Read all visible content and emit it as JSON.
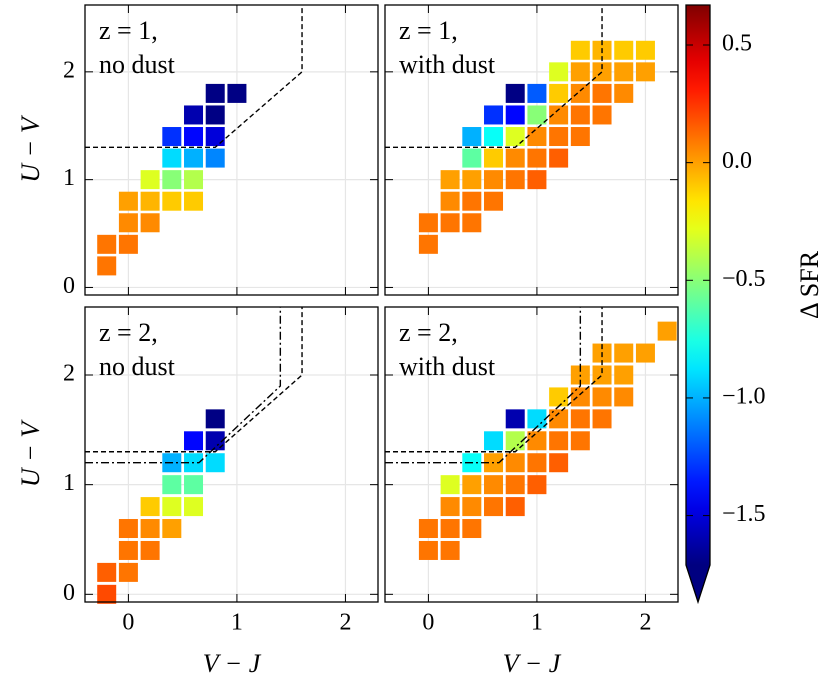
{
  "chart_data": [
    {
      "type": "heatmap",
      "label": [
        "z = 1,",
        "no dust"
      ],
      "ylabel": "U − V",
      "x": [
        -0.2,
        -0.2,
        0,
        0,
        0,
        0.2,
        0.2,
        0.2,
        0.4,
        0.4,
        0.4,
        0.4,
        0.6,
        0.6,
        0.6,
        0.6,
        0.6,
        0.8,
        0.8,
        0.8,
        0.8,
        1.0
      ],
      "y": [
        0.2,
        0.4,
        0.4,
        0.6,
        0.8,
        0.6,
        0.8,
        1.0,
        0.8,
        1.0,
        1.2,
        1.4,
        0.8,
        1.0,
        1.2,
        1.4,
        1.6,
        1.2,
        1.4,
        1.6,
        1.8,
        1.8
      ],
      "values": [
        0.1,
        0.1,
        0.1,
        0.05,
        0.0,
        0.05,
        -0.05,
        -0.3,
        -0.1,
        -0.5,
        -0.9,
        -1.3,
        -0.1,
        -0.4,
        -1.0,
        -1.4,
        -1.6,
        -1.1,
        -1.5,
        -1.7,
        -1.7,
        -1.7
      ],
      "boundaries": [
        {
          "style": "dashed",
          "x": [
            -0.4,
            0.8,
            1.6,
            1.6
          ],
          "y": [
            1.3,
            1.3,
            2.0,
            2.62
          ]
        }
      ],
      "xlim": [
        -0.4,
        2.3
      ],
      "ylim": [
        -0.07,
        2.62
      ],
      "xticks": [
        0,
        1,
        2
      ],
      "yticks": [
        0,
        1,
        2
      ],
      "grid": true
    },
    {
      "type": "heatmap",
      "label": [
        "z = 1,",
        "with dust"
      ],
      "x": [
        0,
        0,
        0.2,
        0.2,
        0.2,
        0.4,
        0.4,
        0.4,
        0.4,
        0.4,
        0.6,
        0.6,
        0.6,
        0.6,
        0.6,
        0.8,
        0.8,
        0.8,
        0.8,
        0.8,
        1.0,
        1.0,
        1.0,
        1.0,
        1.0,
        1.2,
        1.2,
        1.2,
        1.2,
        1.2,
        1.4,
        1.4,
        1.4,
        1.4,
        1.4,
        1.6,
        1.6,
        1.6,
        1.6,
        1.8,
        1.8,
        1.8,
        2.0,
        2.0
      ],
      "y": [
        0.4,
        0.6,
        0.6,
        0.8,
        1.0,
        0.6,
        0.8,
        1.0,
        1.2,
        1.4,
        0.8,
        1.0,
        1.2,
        1.4,
        1.6,
        1.0,
        1.2,
        1.4,
        1.6,
        1.8,
        1.0,
        1.2,
        1.4,
        1.6,
        1.8,
        1.2,
        1.4,
        1.6,
        1.8,
        2.0,
        1.4,
        1.6,
        1.8,
        2.0,
        2.2,
        1.6,
        1.8,
        2.0,
        2.2,
        1.8,
        2.0,
        2.2,
        2.0,
        2.2
      ],
      "values": [
        0.1,
        0.1,
        0.1,
        0.05,
        0.0,
        0.1,
        0.1,
        0.0,
        -0.6,
        -1.0,
        0.1,
        0.05,
        -0.1,
        -0.8,
        -1.3,
        0.1,
        0.05,
        -0.3,
        -1.4,
        -1.7,
        0.15,
        0.1,
        0.05,
        -0.5,
        -1.2,
        0.15,
        0.1,
        0.05,
        -0.1,
        -0.3,
        0.1,
        0.1,
        0.05,
        0.0,
        -0.1,
        0.1,
        0.1,
        0.0,
        -0.05,
        0.05,
        0.0,
        -0.1,
        0.0,
        -0.1
      ],
      "boundaries": [
        {
          "style": "dashed",
          "x": [
            -0.4,
            0.8,
            1.6,
            1.6
          ],
          "y": [
            1.3,
            1.3,
            2.0,
            2.62
          ]
        }
      ],
      "xlim": [
        -0.4,
        2.3
      ],
      "ylim": [
        -0.07,
        2.62
      ],
      "xticks": [
        0,
        1,
        2
      ],
      "yticks": [
        0,
        1,
        2
      ],
      "grid": true
    },
    {
      "type": "heatmap",
      "label": [
        "z = 2,",
        "no dust"
      ],
      "ylabel": "U − V",
      "xlabel": "V − J",
      "x": [
        -0.2,
        -0.2,
        0,
        0,
        0,
        0.2,
        0.2,
        0.2,
        0.4,
        0.4,
        0.4,
        0.4,
        0.6,
        0.6,
        0.6,
        0.6,
        0.8,
        0.8,
        0.8
      ],
      "y": [
        0.0,
        0.2,
        0.2,
        0.4,
        0.6,
        0.4,
        0.6,
        0.8,
        0.6,
        0.8,
        1.0,
        1.2,
        0.8,
        1.0,
        1.2,
        1.4,
        1.2,
        1.4,
        1.6
      ],
      "values": [
        0.2,
        0.15,
        0.1,
        0.1,
        0.1,
        0.1,
        0.05,
        -0.1,
        0.0,
        -0.3,
        -0.6,
        -1.0,
        -0.3,
        -0.6,
        -0.9,
        -1.4,
        -0.9,
        -1.6,
        -1.7
      ],
      "boundaries": [
        {
          "style": "dashed",
          "x": [
            -0.4,
            0.8,
            1.6,
            1.6
          ],
          "y": [
            1.3,
            1.3,
            2.0,
            2.62
          ]
        },
        {
          "style": "dashdot",
          "x": [
            -0.4,
            0.65,
            1.4,
            1.4
          ],
          "y": [
            1.2,
            1.2,
            1.9,
            2.62
          ]
        }
      ],
      "xlim": [
        -0.4,
        2.3
      ],
      "ylim": [
        -0.07,
        2.62
      ],
      "xticks": [
        0,
        1,
        2
      ],
      "yticks": [
        0,
        1,
        2
      ],
      "grid": true
    },
    {
      "type": "heatmap",
      "label": [
        "z = 2,",
        "with dust"
      ],
      "xlabel": "V − J",
      "x": [
        0,
        0,
        0.2,
        0.2,
        0.2,
        0.2,
        0.4,
        0.4,
        0.4,
        0.4,
        0.6,
        0.6,
        0.6,
        0.6,
        0.8,
        0.8,
        0.8,
        0.8,
        0.8,
        1.0,
        1.0,
        1.0,
        1.0,
        1.2,
        1.2,
        1.2,
        1.2,
        1.4,
        1.4,
        1.4,
        1.4,
        1.6,
        1.6,
        1.6,
        1.6,
        1.8,
        1.8,
        1.8,
        2.0,
        2.2
      ],
      "y": [
        0.4,
        0.6,
        0.4,
        0.6,
        0.8,
        1.0,
        0.6,
        0.8,
        1.0,
        1.2,
        0.8,
        1.0,
        1.2,
        1.4,
        0.8,
        1.0,
        1.2,
        1.4,
        1.6,
        1.0,
        1.2,
        1.4,
        1.6,
        1.2,
        1.4,
        1.6,
        1.8,
        1.4,
        1.6,
        1.8,
        2.0,
        1.6,
        1.8,
        2.0,
        2.2,
        1.8,
        2.0,
        2.2,
        2.2,
        2.4
      ],
      "values": [
        0.1,
        0.1,
        0.1,
        0.1,
        0.05,
        -0.3,
        0.1,
        0.05,
        0.0,
        -0.8,
        0.1,
        0.05,
        0.0,
        -0.9,
        0.15,
        0.1,
        0.05,
        -0.4,
        -1.6,
        0.15,
        0.1,
        0.05,
        -0.9,
        0.15,
        0.1,
        0.05,
        -0.1,
        0.1,
        0.1,
        0.05,
        0.0,
        0.1,
        0.05,
        0.0,
        0.0,
        0.05,
        0.0,
        0.0,
        0.0,
        0.0
      ],
      "boundaries": [
        {
          "style": "dashed",
          "x": [
            -0.4,
            0.8,
            1.6,
            1.6
          ],
          "y": [
            1.3,
            1.3,
            2.0,
            2.62
          ]
        },
        {
          "style": "dashdot",
          "x": [
            -0.4,
            0.65,
            1.4,
            1.4
          ],
          "y": [
            1.2,
            1.2,
            1.9,
            2.62
          ]
        }
      ],
      "xlim": [
        -0.4,
        2.3
      ],
      "ylim": [
        -0.07,
        2.62
      ],
      "xticks": [
        0,
        1,
        2
      ],
      "yticks": [
        0,
        1,
        2
      ],
      "grid": true
    }
  ],
  "colorbar": {
    "label": "Δ SFR",
    "colormap": "jet",
    "clim": [
      -1.71,
      0.67
    ],
    "ticks": [
      0.5,
      {
        "value": 0,
        "label": "0.0"
      },
      {
        "value": -0.5,
        "label": "−0.5"
      },
      {
        "value": -1,
        "label": "−1.0"
      },
      {
        "value": -1.5,
        "label": "−1.5"
      }
    ]
  }
}
